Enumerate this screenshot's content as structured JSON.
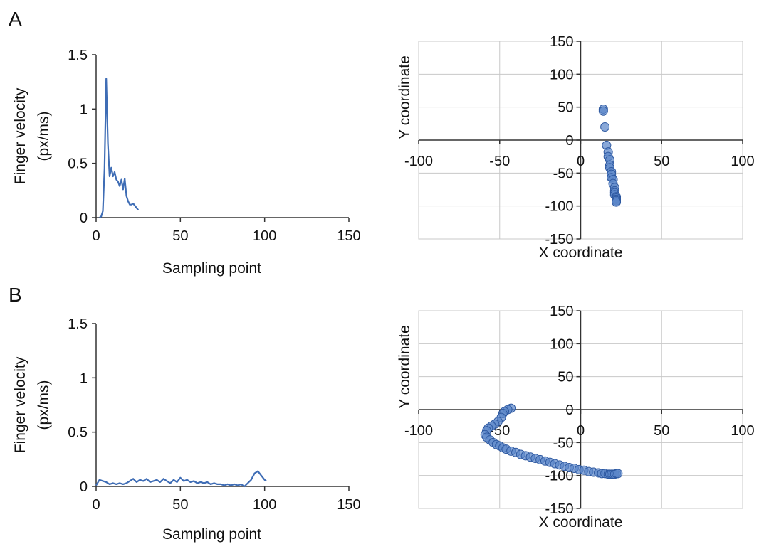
{
  "panels": [
    "A",
    "B"
  ],
  "colors": {
    "line": "#3f6db5",
    "marker_fill": "#5b86c9",
    "marker_stroke": "#2d58a0",
    "axis": "#333333",
    "grid": "#c8c8c8"
  },
  "chart_data": [
    {
      "panel": "A",
      "type": "line",
      "xlabel": "Sampling point",
      "ylabel": [
        "Finger velocity",
        "(px/ms)"
      ],
      "xlim": [
        0,
        150
      ],
      "ylim": [
        0,
        1.5
      ],
      "xticks": [
        "0",
        "50",
        "100",
        "150"
      ],
      "yticks": [
        "0",
        "0.5",
        "1",
        "1.5"
      ],
      "grid": false,
      "x": [
        2,
        3,
        4,
        5,
        6,
        7,
        8,
        9,
        10,
        11,
        12,
        13,
        14,
        15,
        16,
        17,
        18,
        19,
        20,
        21,
        22,
        23,
        24,
        25
      ],
      "y": [
        0.0,
        0.01,
        0.06,
        0.45,
        1.28,
        0.68,
        0.38,
        0.46,
        0.38,
        0.42,
        0.35,
        0.33,
        0.29,
        0.35,
        0.26,
        0.36,
        0.2,
        0.15,
        0.12,
        0.12,
        0.13,
        0.11,
        0.09,
        0.07
      ]
    },
    {
      "panel": "A",
      "type": "scatter",
      "xlabel": "X coordinate",
      "ylabel": "Y coordinate",
      "xlim": [
        -100,
        100
      ],
      "ylim": [
        -150,
        150
      ],
      "xticks": [
        "-100",
        "-50",
        "0",
        "50",
        "100"
      ],
      "yticks": [
        "-150",
        "-100",
        "-50",
        "0",
        "50",
        "100",
        "150"
      ],
      "grid": true,
      "x": [
        14,
        14,
        15,
        16,
        17,
        17,
        18,
        18,
        18,
        19,
        19,
        19,
        20,
        20,
        21,
        21,
        21,
        21,
        22,
        22,
        22,
        22,
        22
      ],
      "y": [
        47,
        44,
        20,
        -8,
        -18,
        -25,
        -30,
        -38,
        -42,
        -48,
        -52,
        -57,
        -60,
        -66,
        -72,
        -77,
        -80,
        -83,
        -86,
        -88,
        -90,
        -92,
        -94
      ]
    },
    {
      "panel": "B",
      "type": "line",
      "xlabel": "Sampling point",
      "ylabel": [
        "Finger velocity",
        "(px/ms)"
      ],
      "xlim": [
        0,
        150
      ],
      "ylim": [
        0,
        1.5
      ],
      "xticks": [
        "0",
        "50",
        "100",
        "150"
      ],
      "yticks": [
        "0",
        "0.5",
        "1",
        "1.5"
      ],
      "grid": false,
      "x": [
        0,
        2,
        4,
        6,
        8,
        10,
        12,
        14,
        16,
        18,
        20,
        22,
        24,
        26,
        28,
        30,
        32,
        34,
        36,
        38,
        40,
        42,
        44,
        46,
        48,
        50,
        52,
        54,
        56,
        58,
        60,
        62,
        64,
        66,
        68,
        70,
        72,
        74,
        76,
        78,
        80,
        82,
        84,
        86,
        88,
        90,
        92,
        94,
        96,
        98,
        100,
        101
      ],
      "y": [
        0.01,
        0.06,
        0.05,
        0.04,
        0.02,
        0.03,
        0.02,
        0.03,
        0.02,
        0.03,
        0.05,
        0.07,
        0.04,
        0.06,
        0.05,
        0.07,
        0.04,
        0.05,
        0.06,
        0.04,
        0.07,
        0.05,
        0.03,
        0.06,
        0.04,
        0.08,
        0.05,
        0.06,
        0.04,
        0.05,
        0.03,
        0.04,
        0.03,
        0.04,
        0.02,
        0.03,
        0.02,
        0.02,
        0.01,
        0.02,
        0.01,
        0.02,
        0.01,
        0.02,
        0.0,
        0.03,
        0.06,
        0.12,
        0.14,
        0.1,
        0.06,
        0.05
      ]
    },
    {
      "panel": "B",
      "type": "scatter",
      "xlabel": "X coordinate",
      "ylabel": "Y coordinate",
      "xlim": [
        -100,
        100
      ],
      "ylim": [
        -150,
        150
      ],
      "xticks": [
        "-100",
        "-50",
        "0",
        "50",
        "100"
      ],
      "yticks": [
        "-150",
        "-100",
        "-50",
        "0",
        "50",
        "100",
        "150"
      ],
      "grid": true,
      "x": [
        -43,
        -45,
        -47,
        -48,
        -49,
        -51,
        -53,
        -55,
        -57,
        -58,
        -59,
        -58,
        -56,
        -54,
        -52,
        -50,
        -48,
        -46,
        -43,
        -40,
        -37,
        -34,
        -31,
        -28,
        -25,
        -22,
        -19,
        -16,
        -13,
        -10,
        -7,
        -4,
        -1,
        2,
        5,
        8,
        11,
        13,
        15,
        17,
        18,
        19,
        20,
        21,
        22,
        23
      ],
      "y": [
        2,
        0,
        -3,
        -6,
        -12,
        -18,
        -22,
        -25,
        -28,
        -32,
        -38,
        -42,
        -46,
        -50,
        -53,
        -55,
        -58,
        -60,
        -63,
        -65,
        -68,
        -70,
        -72,
        -74,
        -76,
        -78,
        -80,
        -82,
        -84,
        -86,
        -88,
        -89,
        -91,
        -92,
        -94,
        -95,
        -96,
        -97,
        -97,
        -98,
        -98,
        -98,
        -98,
        -98,
        -97,
        -97
      ]
    }
  ]
}
